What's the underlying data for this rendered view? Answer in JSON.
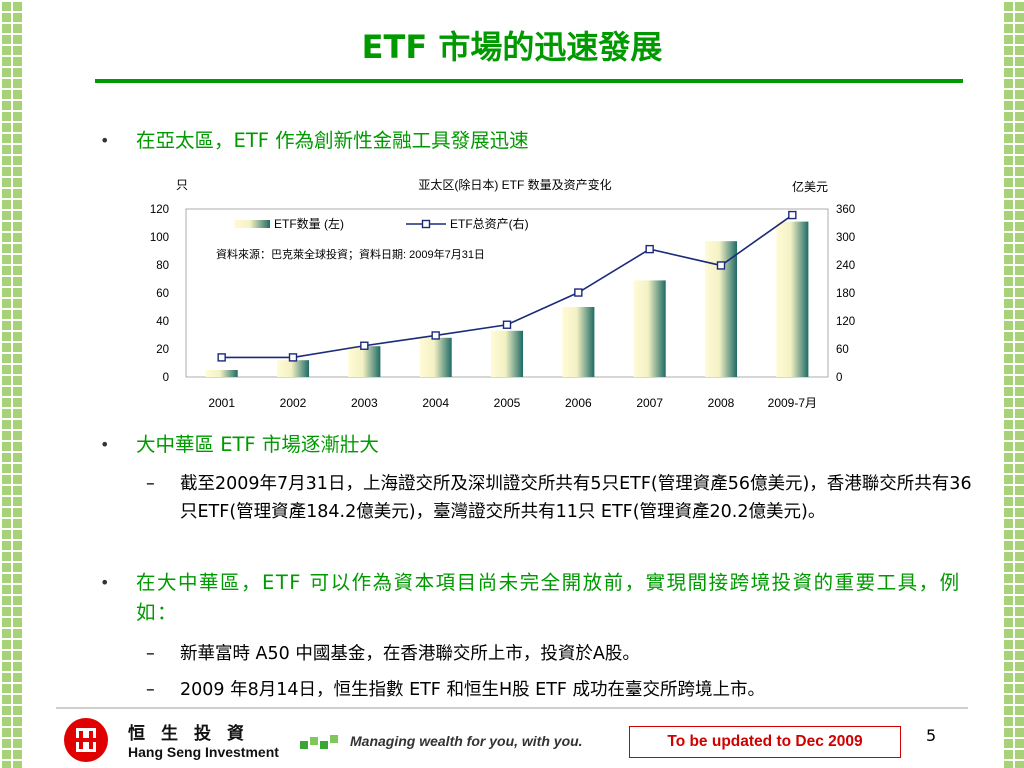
{
  "title": "ETF 市場的迅速發展",
  "bullets": [
    {
      "text": "在亞太區，ETF 作為創新性金融工具發展迅速"
    },
    {
      "text": "大中華區 ETF 市場逐漸壯大",
      "subs": [
        "截至2009年7月31日，上海證交所及深圳證交所共有5只ETF(管理資產56億美元)，香港聯交所共有36只ETF(管理資產184.2億美元)，臺灣證交所共有11只  ETF(管理資產20.2億美元)。"
      ]
    },
    {
      "text": "在大中華區，ETF  可以作為資本項目尚未完全開放前，實現間接跨境投資的重要工具，例如：",
      "subs": [
        "新華富時 A50 中國基金，在香港聯交所上市，投資於A股。",
        "2009 年8月14日，恒生指數 ETF 和恒生H股 ETF 成功在臺交所跨境上市。"
      ]
    }
  ],
  "chart_data": {
    "type": "bar",
    "title": "亚太区(除日本) ETF 数量及资产变化",
    "ylabel_left": "只",
    "ylabel_right": "亿美元",
    "categories": [
      "2001",
      "2002",
      "2003",
      "2004",
      "2005",
      "2006",
      "2007",
      "2008",
      "2009-7月"
    ],
    "series": [
      {
        "name": "ETF数量 (左)",
        "type": "bar",
        "axis": "left",
        "values": [
          5,
          12,
          22,
          28,
          33,
          50,
          69,
          97,
          111
        ]
      },
      {
        "name": "ETF总资产(右)",
        "type": "line",
        "axis": "right",
        "values": [
          42,
          42,
          67,
          89,
          112,
          181,
          274,
          239,
          347
        ]
      }
    ],
    "yleft_ticks": [
      0,
      20,
      40,
      60,
      80,
      100,
      120
    ],
    "yright_ticks": [
      0,
      60,
      120,
      180,
      240,
      300,
      360
    ],
    "ylim_left": [
      0,
      120
    ],
    "ylim_right": [
      0,
      360
    ],
    "source_note": "資料來源：巴克萊全球投資；資料日期: 2009年7月31日",
    "colors": {
      "bar_light": "#fffbd6",
      "bar_dark": "#1e6b66",
      "line": "#1c2a7a"
    }
  },
  "footer": {
    "logo_cn": "恒生投資",
    "logo_en": "Hang Seng Investment",
    "tagline": "Managing wealth for you, with you.",
    "update_note": "To be updated to Dec 2009",
    "page_number": "5"
  },
  "colors": {
    "accent": "#009900",
    "warning": "#d00000"
  }
}
